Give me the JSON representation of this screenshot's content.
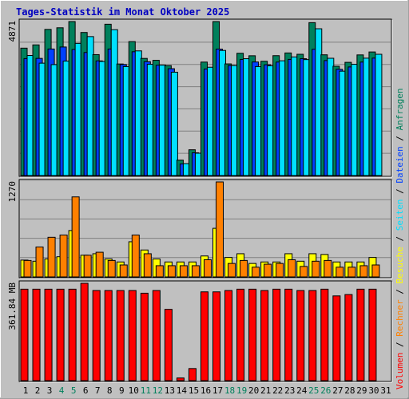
{
  "title": "Tages-Statistik im Monat Oktober 2025",
  "colors": {
    "background": "#c0c0c0",
    "title": "#0000c0",
    "requests": "#00805c",
    "files": "#0040ff",
    "pages": "#00e0ff",
    "visits": "#ff8000",
    "sites": "#ffff00",
    "kbytes": "#ff0000",
    "weekend_day": "#00805c",
    "weekday_day": "#000000"
  },
  "right_legend": [
    {
      "text": "Volumen",
      "color": "#ff0000"
    },
    {
      "text": " / ",
      "color": "#000000"
    },
    {
      "text": "Rechner",
      "color": "#ff8000"
    },
    {
      "text": " / ",
      "color": "#000000"
    },
    {
      "text": "Besuche",
      "color": "#ffff00"
    },
    {
      "text": " / ",
      "color": "#000000"
    },
    {
      "text": "Seiten",
      "color": "#00e0ff"
    },
    {
      "text": " / ",
      "color": "#000000"
    },
    {
      "text": "Dateien",
      "color": "#0040ff"
    },
    {
      "text": " / ",
      "color": "#000000"
    },
    {
      "text": "Anfragen",
      "color": "#00805c"
    }
  ],
  "chart_data": [
    {
      "type": "bar",
      "panel": "requests-files-pages",
      "ylabel": "4871",
      "ymax": 4871,
      "categories": [
        "1",
        "2",
        "3",
        "4",
        "5",
        "6",
        "7",
        "8",
        "9",
        "10",
        "11",
        "12",
        "13",
        "14",
        "15",
        "16",
        "17",
        "18",
        "19",
        "20",
        "21",
        "22",
        "23",
        "24",
        "25",
        "26",
        "27",
        "28",
        "29",
        "30",
        "31"
      ],
      "weekend_days": [
        4,
        5,
        11,
        12,
        18,
        19,
        25,
        26
      ],
      "series": [
        {
          "key": "requests",
          "values": [
            4030,
            4133,
            4623,
            4674,
            4871,
            4525,
            3825,
            4786,
            3529,
            4237,
            3705,
            3646,
            3477,
            489,
            816,
            3589,
            4871,
            3532,
            3868,
            3789,
            3615,
            3792,
            3878,
            3836,
            4836,
            3819,
            3458,
            3581,
            3816,
            3909,
            null
          ]
        },
        {
          "key": "files",
          "values": [
            3700,
            3706,
            4003,
            4066,
            3987,
            3892,
            3627,
            4002,
            3512,
            3916,
            3602,
            3490,
            3380,
            370,
            720,
            3370,
            4000,
            3480,
            3673,
            3592,
            3504,
            3590,
            3674,
            3696,
            3995,
            3637,
            3360,
            3435,
            3589,
            3715,
            null
          ]
        },
        {
          "key": "pages",
          "values": [
            3798,
            3555,
            3509,
            3620,
            4181,
            4395,
            3609,
            4614,
            3447,
            3943,
            3519,
            3493,
            3269,
            378,
            707,
            3426,
            3957,
            3479,
            3696,
            3447,
            3471,
            3630,
            3752,
            3668,
            4643,
            3710,
            3302,
            3519,
            3713,
            3836,
            null
          ]
        }
      ]
    },
    {
      "type": "bar",
      "panel": "visits-sites",
      "ylabel": "1270",
      "ymax": 1270,
      "categories": [
        "1",
        "2",
        "3",
        "4",
        "5",
        "6",
        "7",
        "8",
        "9",
        "10",
        "11",
        "12",
        "13",
        "14",
        "15",
        "16",
        "17",
        "18",
        "19",
        "20",
        "21",
        "22",
        "23",
        "24",
        "25",
        "26",
        "27",
        "28",
        "29",
        "30",
        "31"
      ],
      "series": [
        {
          "key": "sites",
          "values": [
            225,
            210,
            240,
            270,
            620,
            290,
            310,
            240,
            200,
            470,
            360,
            240,
            200,
            200,
            200,
            280,
            650,
            260,
            310,
            180,
            200,
            200,
            310,
            210,
            310,
            300,
            200,
            200,
            200,
            260,
            null
          ]
        },
        {
          "key": "visits",
          "values": [
            220,
            400,
            530,
            560,
            1070,
            290,
            330,
            220,
            160,
            560,
            310,
            150,
            150,
            150,
            150,
            230,
            1270,
            180,
            220,
            130,
            170,
            180,
            230,
            140,
            210,
            220,
            130,
            130,
            150,
            160,
            null
          ]
        }
      ]
    },
    {
      "type": "bar",
      "panel": "kbytes",
      "ylabel": "361.84 MB",
      "ymax": 361.84,
      "categories": [
        "1",
        "2",
        "3",
        "4",
        "5",
        "6",
        "7",
        "8",
        "9",
        "10",
        "11",
        "12",
        "13",
        "14",
        "15",
        "16",
        "17",
        "18",
        "19",
        "20",
        "21",
        "22",
        "23",
        "24",
        "25",
        "26",
        "27",
        "28",
        "29",
        "30",
        "31"
      ],
      "series": [
        {
          "key": "kbytes",
          "values": [
            340,
            340,
            340,
            340,
            340,
            361.84,
            335,
            335,
            335,
            335,
            325,
            335,
            265,
            10,
            45,
            330,
            330,
            335,
            340,
            340,
            335,
            340,
            340,
            335,
            335,
            340,
            315,
            320,
            340,
            340,
            null
          ]
        }
      ]
    }
  ]
}
